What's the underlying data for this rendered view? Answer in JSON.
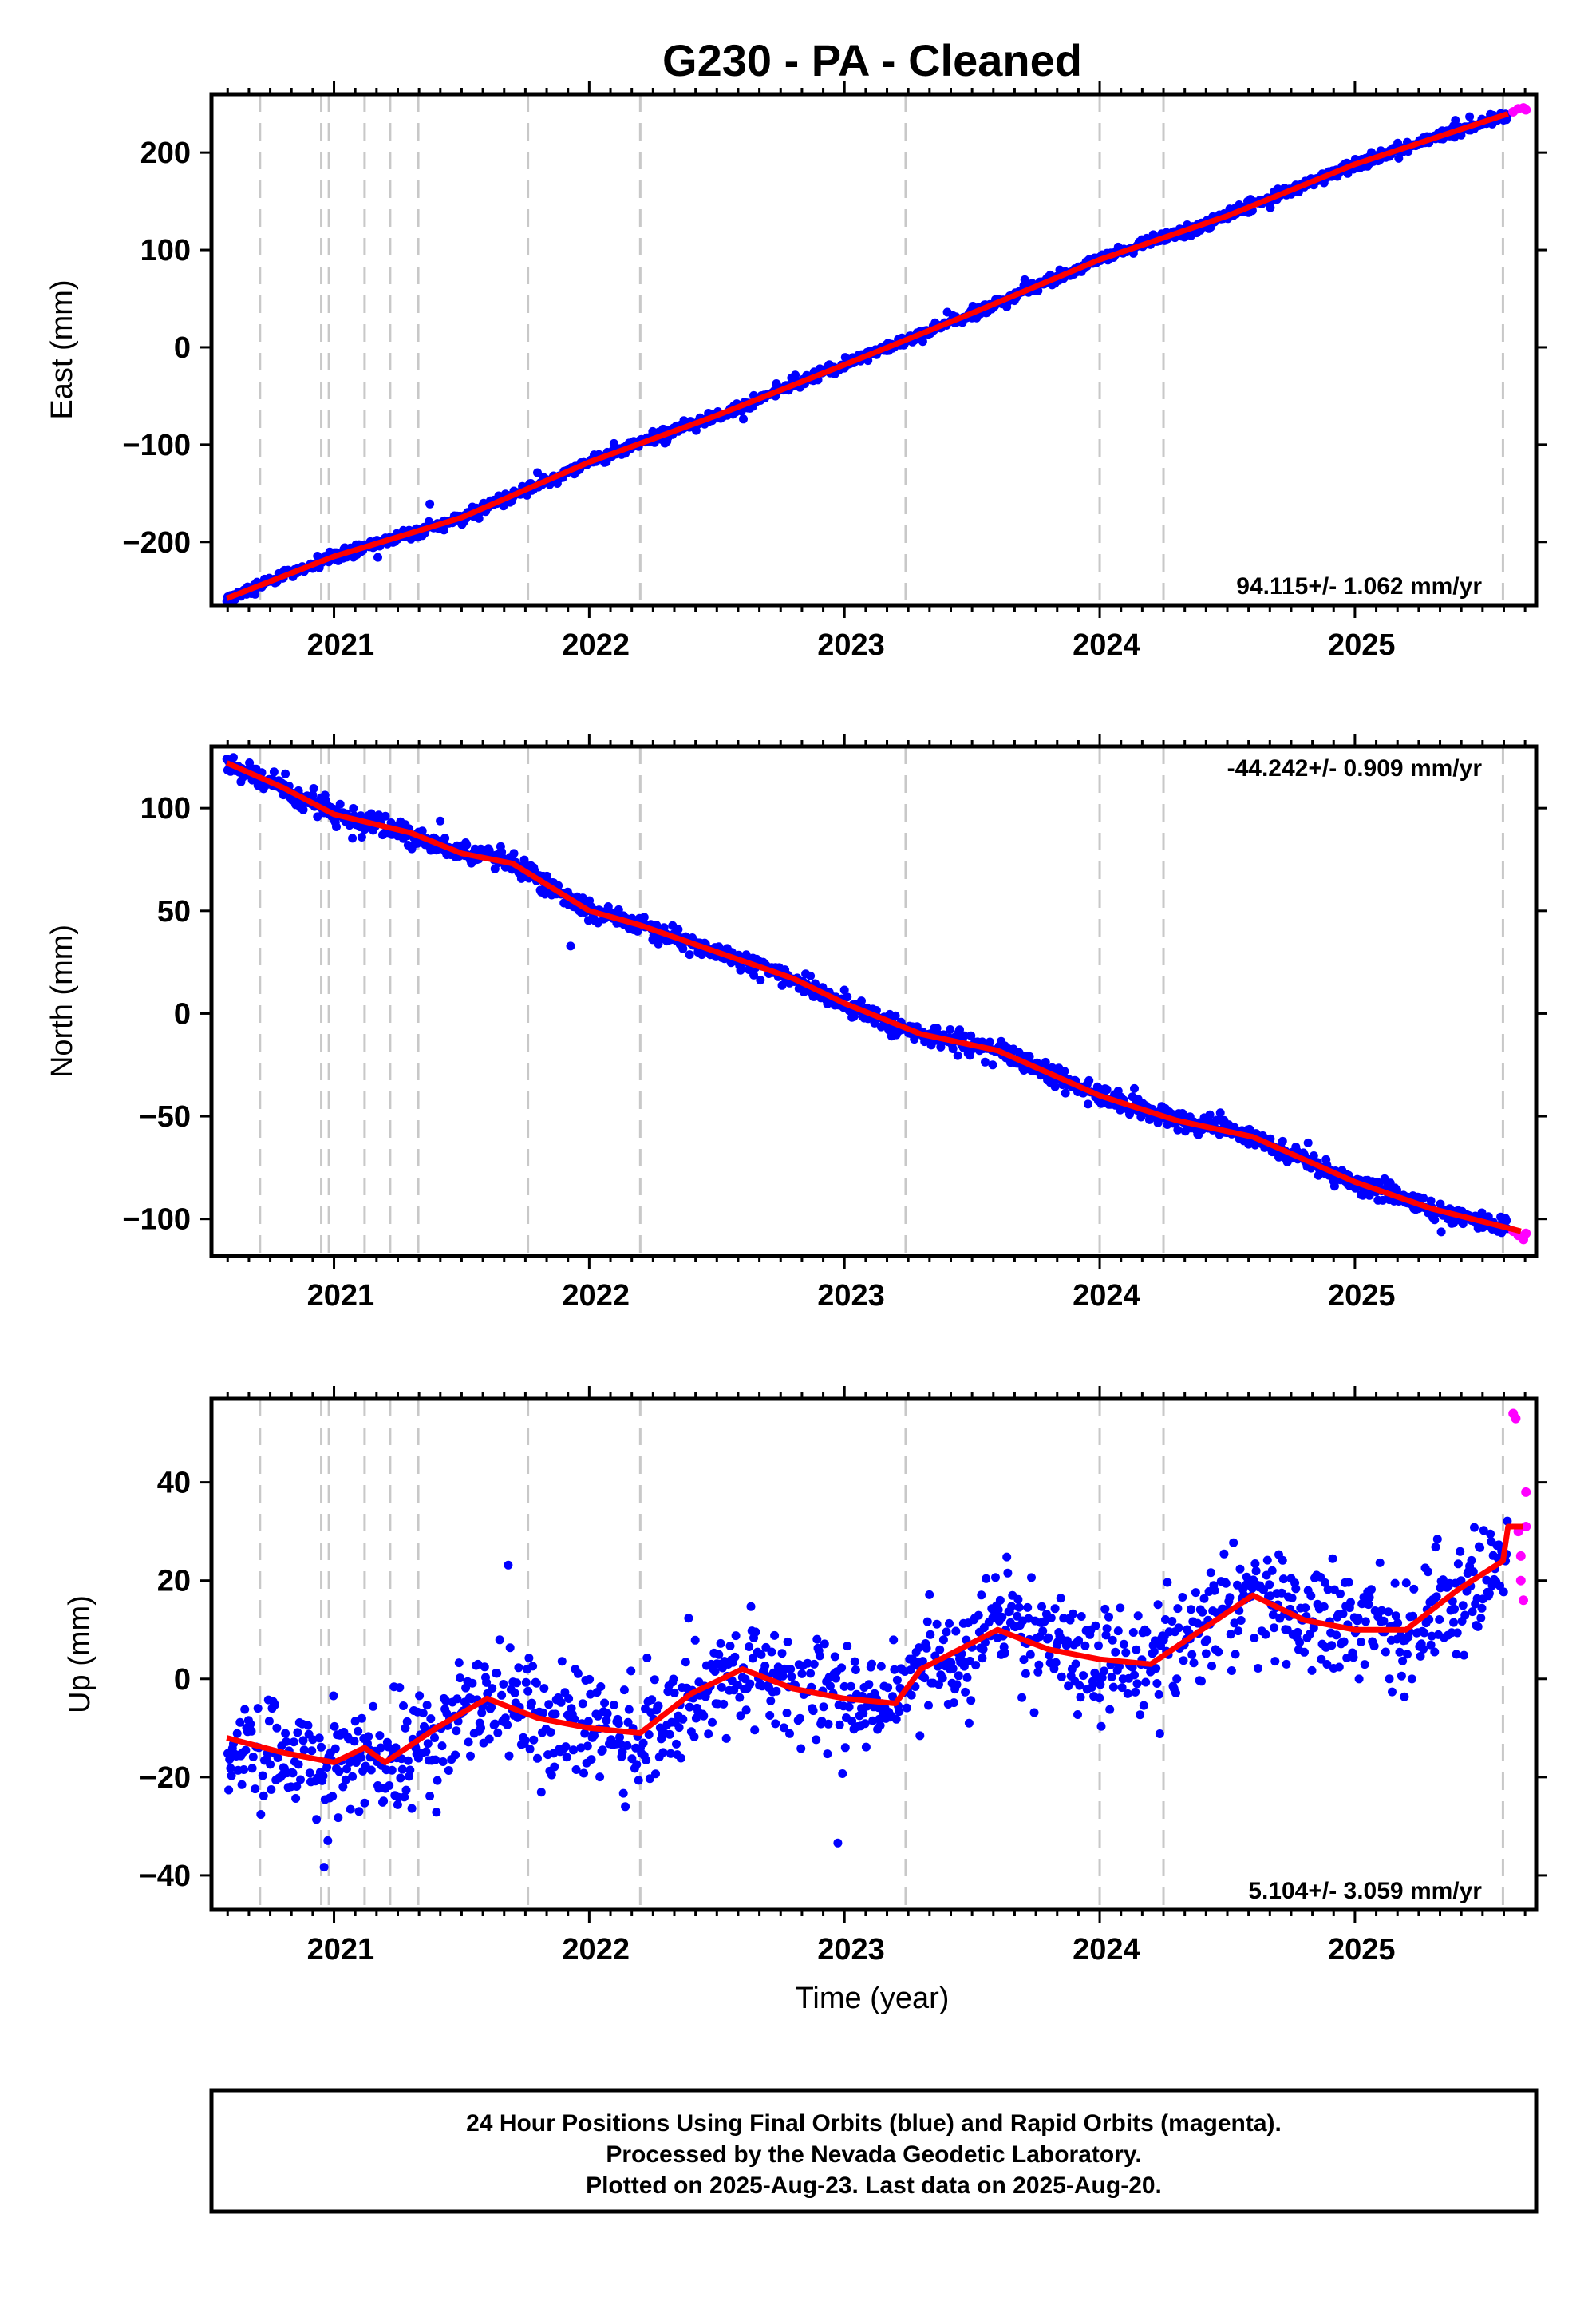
{
  "title": "G230  - PA - Cleaned",
  "xlabel": "Time (year)",
  "footer": [
    "24 Hour Positions Using Final Orbits (blue) and Rapid Orbits (magenta).",
    "Processed by the Nevada Geodetic Laboratory.",
    "Plotted on 2025-Aug-23. Last data on 2025-Aug-20."
  ],
  "colors": {
    "final": "#0000ff",
    "rapid": "#ff00ff",
    "model": "#ff0000",
    "event": "#c8c8c8"
  },
  "chart_data": [
    {
      "type": "scatter",
      "ylabel": "East (mm)",
      "rate": "94.115+/- 1.062 mm/yr",
      "xlim": [
        2020.52,
        2025.71
      ],
      "ylim": [
        -265,
        260
      ],
      "yticks": [
        -200,
        -100,
        0,
        100,
        200
      ],
      "xticks": [
        2021,
        2022,
        2023,
        2024,
        2025
      ],
      "event_lines": [
        2020.71,
        2020.95,
        2020.98,
        2021.12,
        2021.22,
        2021.33,
        2021.76,
        2022.2,
        2023.24,
        2024.0,
        2024.25,
        2025.58
      ],
      "model_points": [
        [
          2020.58,
          -258
        ],
        [
          2021.0,
          -215
        ],
        [
          2021.5,
          -175
        ],
        [
          2022.0,
          -118
        ],
        [
          2022.5,
          -70
        ],
        [
          2023.0,
          -18
        ],
        [
          2023.5,
          35
        ],
        [
          2024.0,
          90
        ],
        [
          2024.5,
          135
        ],
        [
          2025.0,
          188
        ],
        [
          2025.6,
          240
        ]
      ],
      "scatter_mm": 3,
      "rapid_points": [
        [
          2025.62,
          242
        ],
        [
          2025.64,
          245
        ],
        [
          2025.66,
          246
        ],
        [
          2025.67,
          244
        ]
      ]
    },
    {
      "type": "scatter",
      "ylabel": "North (mm)",
      "rate": "-44.242+/- 0.909 mm/yr",
      "xlim": [
        2020.52,
        2025.71
      ],
      "ylim": [
        -118,
        130
      ],
      "yticks": [
        -100,
        -50,
        0,
        50,
        100
      ],
      "xticks": [
        2021,
        2022,
        2023,
        2024,
        2025
      ],
      "event_lines": [
        2020.71,
        2020.95,
        2020.98,
        2021.12,
        2021.22,
        2021.33,
        2021.76,
        2022.2,
        2023.24,
        2024.0,
        2024.25,
        2025.58
      ],
      "model_points": [
        [
          2020.58,
          122
        ],
        [
          2020.8,
          110
        ],
        [
          2021.0,
          97
        ],
        [
          2021.3,
          88
        ],
        [
          2021.5,
          78
        ],
        [
          2021.7,
          73
        ],
        [
          2022.0,
          50
        ],
        [
          2022.2,
          43
        ],
        [
          2022.5,
          30
        ],
        [
          2022.8,
          17
        ],
        [
          2023.0,
          5
        ],
        [
          2023.3,
          -10
        ],
        [
          2023.6,
          -18
        ],
        [
          2024.0,
          -40
        ],
        [
          2024.3,
          -52
        ],
        [
          2024.6,
          -60
        ],
        [
          2025.0,
          -82
        ],
        [
          2025.3,
          -95
        ],
        [
          2025.65,
          -106
        ]
      ],
      "scatter_mm": 2.5,
      "rapid_points": [
        [
          2025.62,
          -106
        ],
        [
          2025.64,
          -108
        ],
        [
          2025.66,
          -110
        ],
        [
          2025.67,
          -107
        ]
      ]
    },
    {
      "type": "scatter",
      "ylabel": "Up (mm)",
      "rate": "5.104+/- 3.059 mm/yr",
      "xlim": [
        2020.52,
        2025.71
      ],
      "ylim": [
        -47,
        57
      ],
      "yticks": [
        -40,
        -20,
        0,
        20,
        40
      ],
      "xticks": [
        2021,
        2022,
        2023,
        2024,
        2025
      ],
      "event_lines": [
        2020.71,
        2020.95,
        2020.98,
        2021.12,
        2021.22,
        2021.33,
        2021.76,
        2022.2,
        2023.24,
        2024.0,
        2024.25,
        2025.58
      ],
      "model_points": [
        [
          2020.58,
          -12
        ],
        [
          2020.8,
          -15
        ],
        [
          2021.0,
          -17
        ],
        [
          2021.12,
          -14
        ],
        [
          2021.2,
          -17
        ],
        [
          2021.4,
          -10
        ],
        [
          2021.6,
          -4
        ],
        [
          2021.8,
          -8
        ],
        [
          2022.0,
          -10
        ],
        [
          2022.2,
          -11
        ],
        [
          2022.4,
          -3
        ],
        [
          2022.6,
          2
        ],
        [
          2022.8,
          -2
        ],
        [
          2023.0,
          -4
        ],
        [
          2023.2,
          -5
        ],
        [
          2023.3,
          2
        ],
        [
          2023.6,
          10
        ],
        [
          2023.8,
          6
        ],
        [
          2024.0,
          4
        ],
        [
          2024.2,
          3
        ],
        [
          2024.4,
          10
        ],
        [
          2024.6,
          17
        ],
        [
          2024.8,
          12
        ],
        [
          2025.0,
          10
        ],
        [
          2025.2,
          10
        ],
        [
          2025.4,
          18
        ],
        [
          2025.58,
          24
        ],
        [
          2025.6,
          31
        ],
        [
          2025.66,
          31
        ]
      ],
      "scatter_mm": 5.5,
      "rapid_points": [
        [
          2025.62,
          54
        ],
        [
          2025.63,
          53
        ],
        [
          2025.64,
          30
        ],
        [
          2025.65,
          25
        ],
        [
          2025.65,
          20
        ],
        [
          2025.66,
          16
        ],
        [
          2025.67,
          38
        ],
        [
          2025.67,
          31
        ]
      ]
    }
  ]
}
